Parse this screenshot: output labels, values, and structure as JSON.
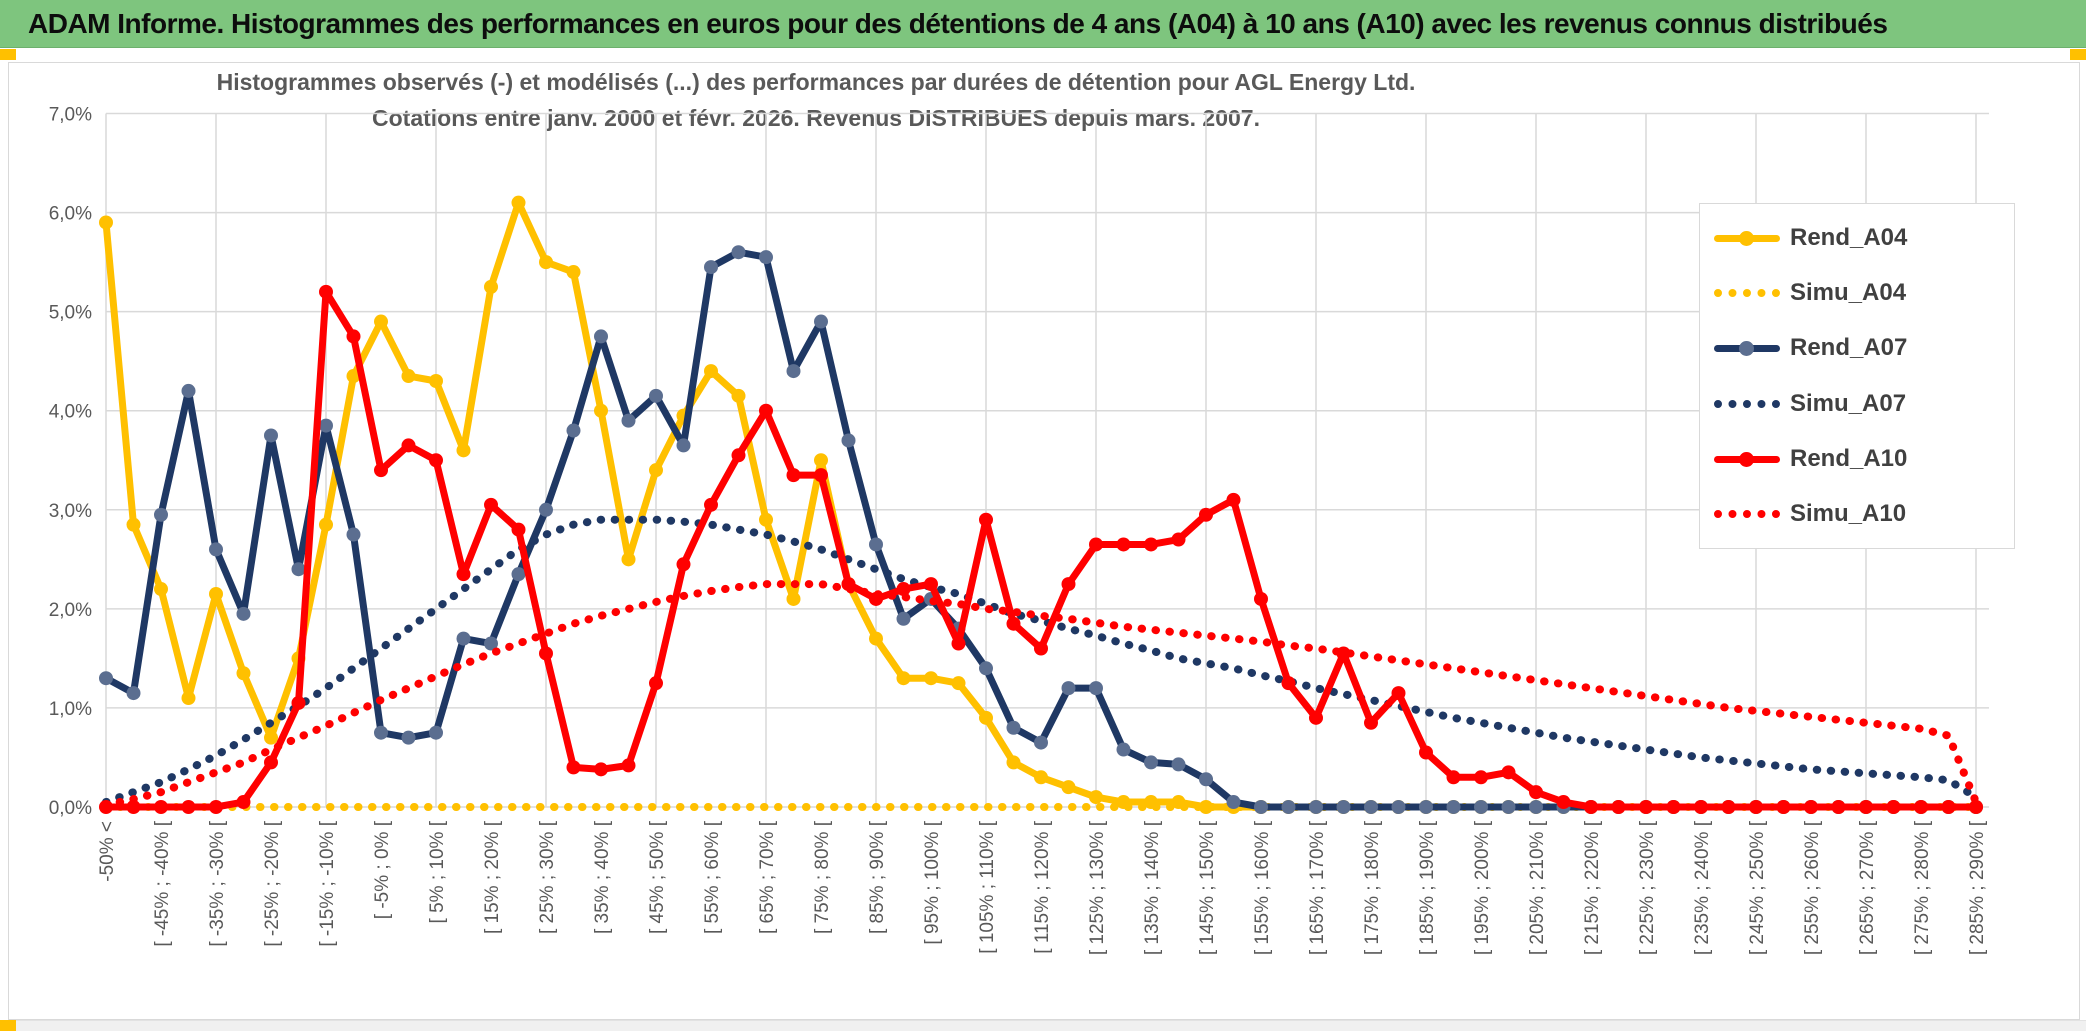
{
  "header": {
    "title": "ADAM Informe. Histogrammes des performances en euros pour des détentions de 4 ans (A04) à 10 ans (A10) avec les revenus connus distribués",
    "background_color": "#7ec57e",
    "accent_color": "#FFC000"
  },
  "chart_data": {
    "type": "line",
    "title": "Histogrammes observés (-) et modélisés (...) des performances par durées de détention pour AGL Energy Ltd.",
    "subtitle": "Cotations entre janv. 2000 et févr. 2026. Revenus DISTRIBUES depuis mars. 2007.",
    "xlabel": "",
    "ylabel": "",
    "ylim": [
      0,
      7
    ],
    "grid": true,
    "legend_position": "right",
    "y_tick_labels": [
      "0,0%",
      "1,0%",
      "2,0%",
      "3,0%",
      "4,0%",
      "5,0%",
      "6,0%",
      "7,0%"
    ],
    "x_tick_labels": [
      "-50% <",
      "[ -45% ; -40% [",
      "[ -35% ; -30% [",
      "[ -25% ; -20% [",
      "[ -15% ; -10% [",
      "[ -5% ; 0% [",
      "[ 5% ; 10% [",
      "[ 15% ; 20% [",
      "[ 25% ; 30% [",
      "[ 35% ; 40% [",
      "[ 45% ; 50% [",
      "[ 55% ; 60% [",
      "[ 65% ; 70% [",
      "[ 75% ; 80% [",
      "[ 85% ; 90% [",
      "[ 95% ; 100% [",
      "[ 105% ; 110% [",
      "[ 115% ; 120% [",
      "[ 125% ; 130% [",
      "[ 135% ; 140% [",
      "[ 145% ; 150% [",
      "[ 155% ; 160% [",
      "[ 165% ; 170% [",
      "[ 175% ; 180% [",
      "[ 185% ; 190% [",
      "[ 195% ; 200% [",
      "[ 205% ; 210% [",
      "[ 215% ; 220% [",
      "[ 225% ; 230% [",
      "[ 235% ; 240% [",
      "[ 245% ; 250% [",
      "[ 255% ; 260% [",
      "[ 265% ; 270% [",
      "[ 275% ; 280% [",
      "[ 285% ; 290% ["
    ],
    "x_label_every_n_points": 2,
    "bin_width_pct": 5,
    "n_points": 69,
    "series": [
      {
        "name": "Rend_A04",
        "style": "solid",
        "color": "#FFC000",
        "marker_color": "#FFC000",
        "values": [
          5.9,
          2.85,
          2.2,
          1.1,
          2.15,
          1.35,
          0.7,
          1.5,
          2.85,
          4.35,
          4.9,
          4.35,
          4.3,
          3.6,
          5.25,
          6.1,
          5.5,
          5.4,
          4.0,
          2.5,
          3.4,
          3.95,
          4.4,
          4.15,
          2.9,
          2.1,
          3.5,
          2.25,
          1.7,
          1.3,
          1.3,
          1.25,
          0.9,
          0.45,
          0.3,
          0.2,
          0.1,
          0.05,
          0.05,
          0.05,
          0,
          0,
          0,
          0,
          0,
          0,
          0,
          0,
          0,
          0,
          0,
          0,
          0,
          0,
          0,
          0,
          0,
          0,
          0,
          0,
          0,
          0,
          0,
          0,
          0,
          0,
          0,
          0,
          0
        ]
      },
      {
        "name": "Simu_A04",
        "style": "dotted",
        "color": "#FFC000",
        "marker_color": "#FFC000",
        "values": [
          0,
          0,
          0,
          0,
          0,
          0,
          0,
          0,
          0,
          0,
          0,
          0,
          0,
          0,
          0,
          0,
          0,
          0,
          0,
          0,
          0,
          0,
          0,
          0,
          0,
          0,
          0,
          0,
          0,
          0,
          0,
          0,
          0,
          0,
          0,
          0,
          0,
          0,
          0,
          0,
          0,
          0,
          0,
          0,
          0,
          0,
          0,
          0,
          0,
          0,
          0,
          0,
          0,
          0,
          0,
          0,
          0,
          0,
          0,
          0,
          0,
          0,
          0,
          0,
          0,
          0,
          0,
          0,
          0
        ]
      },
      {
        "name": "Rend_A07",
        "style": "solid",
        "color": "#1F3864",
        "marker_color": "#5b6e90",
        "values": [
          1.3,
          1.15,
          2.95,
          4.2,
          2.6,
          1.95,
          3.75,
          2.4,
          3.85,
          2.75,
          0.75,
          0.7,
          0.75,
          1.7,
          1.65,
          2.35,
          3.0,
          3.8,
          4.75,
          3.9,
          4.15,
          3.65,
          5.45,
          5.6,
          5.55,
          4.4,
          4.9,
          3.7,
          2.65,
          1.9,
          2.1,
          1.8,
          1.4,
          0.8,
          0.65,
          1.2,
          1.2,
          0.58,
          0.45,
          0.43,
          0.28,
          0.05,
          0,
          0,
          0,
          0,
          0,
          0,
          0,
          0,
          0,
          0,
          0,
          0,
          0,
          0,
          0,
          0,
          0,
          0,
          0,
          0,
          0,
          0,
          0,
          0,
          0,
          0,
          0
        ]
      },
      {
        "name": "Simu_A07",
        "style": "dotted",
        "color": "#1F3864",
        "marker_color": "#1F3864",
        "values": [
          0.05,
          0.15,
          0.25,
          0.38,
          0.52,
          0.68,
          0.85,
          1.02,
          1.2,
          1.4,
          1.6,
          1.8,
          2.0,
          2.2,
          2.4,
          2.6,
          2.75,
          2.85,
          2.9,
          2.9,
          2.9,
          2.88,
          2.85,
          2.8,
          2.75,
          2.68,
          2.6,
          2.5,
          2.4,
          2.3,
          2.22,
          2.15,
          2.05,
          1.95,
          1.88,
          1.8,
          1.73,
          1.65,
          1.58,
          1.5,
          1.45,
          1.4,
          1.33,
          1.27,
          1.2,
          1.14,
          1.08,
          1.02,
          0.96,
          0.9,
          0.85,
          0.8,
          0.75,
          0.7,
          0.66,
          0.62,
          0.58,
          0.54,
          0.5,
          0.47,
          0.44,
          0.41,
          0.38,
          0.36,
          0.34,
          0.32,
          0.3,
          0.27,
          0.1
        ]
      },
      {
        "name": "Rend_A10",
        "style": "solid",
        "color": "#FF0000",
        "marker_color": "#FF0000",
        "values": [
          0,
          0,
          0,
          0,
          0,
          0.05,
          0.45,
          1.05,
          5.2,
          4.75,
          3.4,
          3.65,
          3.5,
          2.35,
          3.05,
          2.8,
          1.55,
          0.4,
          0.38,
          0.42,
          1.25,
          2.45,
          3.05,
          3.55,
          4.0,
          3.35,
          3.35,
          2.25,
          2.1,
          2.2,
          2.25,
          1.65,
          2.9,
          1.85,
          1.6,
          2.25,
          2.65,
          2.65,
          2.65,
          2.7,
          2.95,
          3.1,
          2.1,
          1.25,
          0.9,
          1.55,
          0.85,
          1.15,
          0.55,
          0.3,
          0.3,
          0.35,
          0.15,
          0.05,
          0,
          0,
          0,
          0,
          0,
          0,
          0,
          0,
          0,
          0,
          0,
          0,
          0,
          0,
          0
        ]
      },
      {
        "name": "Simu_A10",
        "style": "dotted",
        "color": "#FF0000",
        "marker_color": "#FF0000",
        "values": [
          0.02,
          0.08,
          0.15,
          0.25,
          0.35,
          0.45,
          0.58,
          0.7,
          0.82,
          0.95,
          1.08,
          1.2,
          1.32,
          1.44,
          1.55,
          1.65,
          1.75,
          1.85,
          1.93,
          2.0,
          2.07,
          2.13,
          2.18,
          2.22,
          2.25,
          2.25,
          2.25,
          2.2,
          2.15,
          2.12,
          2.08,
          2.05,
          2.0,
          1.97,
          1.93,
          1.9,
          1.86,
          1.82,
          1.79,
          1.76,
          1.73,
          1.7,
          1.67,
          1.63,
          1.6,
          1.56,
          1.52,
          1.48,
          1.44,
          1.4,
          1.36,
          1.32,
          1.28,
          1.24,
          1.2,
          1.16,
          1.12,
          1.08,
          1.04,
          1.0,
          0.97,
          0.94,
          0.91,
          0.88,
          0.85,
          0.82,
          0.79,
          0.72,
          0.05
        ]
      }
    ],
    "colors": {
      "gridline": "#d9d9d9",
      "axis_text": "#595959",
      "title_text": "#595959",
      "legend_text": "#404040"
    }
  }
}
